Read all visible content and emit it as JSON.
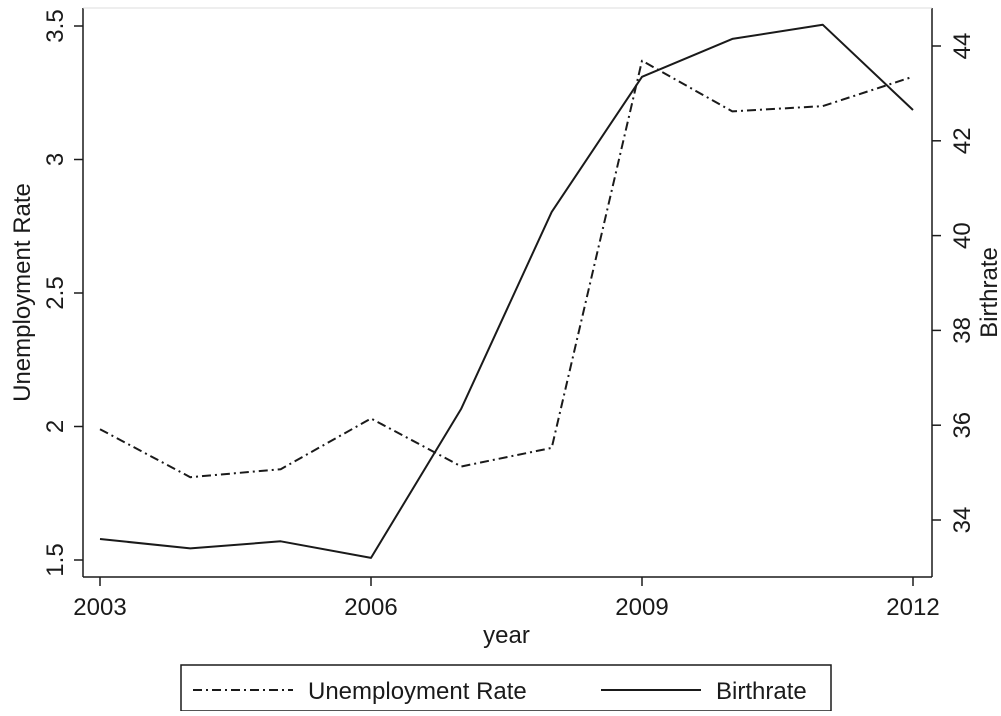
{
  "chart_data": {
    "type": "line",
    "title": "",
    "xlabel": "year",
    "ylabel_left": "Unemployment Rate",
    "ylabel_right": "Birthrate",
    "x": [
      2003,
      2004,
      2005,
      2006,
      2007,
      2008,
      2009,
      2010,
      2011,
      2012
    ],
    "xlim": [
      2003,
      2012
    ],
    "xticks": [
      "2003",
      "2006",
      "2009",
      "2012"
    ],
    "ylim_left": [
      1.5,
      3.5
    ],
    "yticks_left": [
      "1.5",
      "2",
      "2.5",
      "3",
      "3.5"
    ],
    "ylim_right": [
      33.2,
      44.5
    ],
    "yticks_right": [
      "34",
      "36",
      "38",
      "40",
      "42",
      "44"
    ],
    "grid": false,
    "legend_position": "bottom",
    "series": [
      {
        "name": "Unemployment Rate",
        "axis": "left",
        "style": "dash-dot",
        "color": "#1a1a1a",
        "values": [
          1.99,
          1.81,
          1.84,
          2.03,
          1.85,
          1.92,
          3.37,
          3.18,
          3.2,
          3.31
        ]
      },
      {
        "name": "Birthrate",
        "axis": "right",
        "style": "solid",
        "color": "#1a1a1a",
        "values": [
          33.6,
          33.4,
          33.55,
          33.2,
          36.35,
          40.5,
          43.35,
          44.15,
          44.45,
          42.65
        ]
      }
    ]
  }
}
